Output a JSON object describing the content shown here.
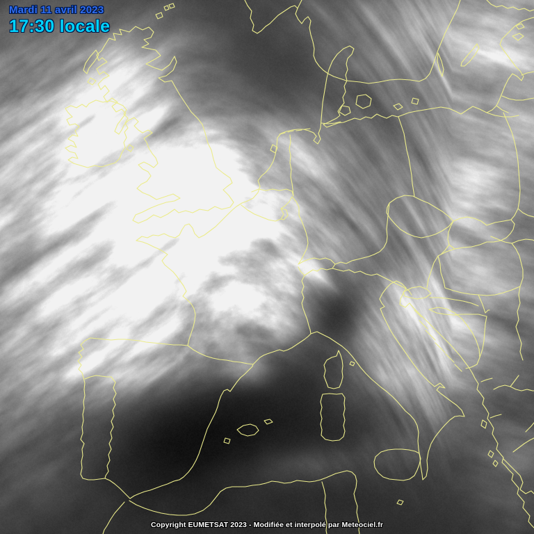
{
  "header": {
    "date": "Mardi 11 avril 2023",
    "time": "17:30 locale"
  },
  "footer": {
    "copyright": "Copyright EUMETSAT 2023 - Modifiée et interpolé par Meteociel.fr"
  },
  "colors": {
    "date-text": "#2e6cf0",
    "time-text": "#00d4ff",
    "text-outline": "#001645",
    "border-lines": "#ecec8c",
    "copyright-text": "#ffffff",
    "map-background": "#3b3b3b"
  }
}
